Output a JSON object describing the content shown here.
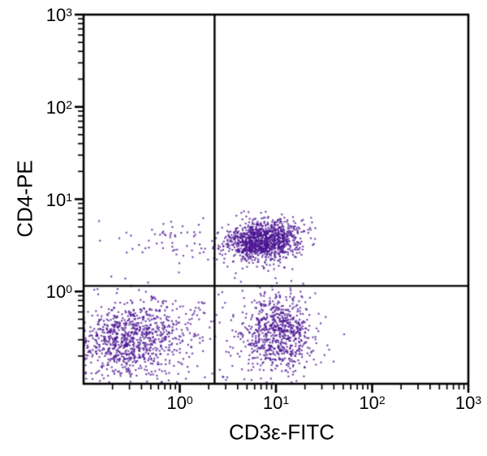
{
  "chart_data": {
    "type": "scatter",
    "title": "",
    "xlabel": "CD3ε-FITC",
    "ylabel": "CD4-PE",
    "x_scale": "log",
    "y_scale": "log",
    "xlim": [
      0.1,
      1000
    ],
    "ylim": [
      0.1,
      1000
    ],
    "x_ticks": [
      {
        "base": "10",
        "exp": "0",
        "value": 1
      },
      {
        "base": "10",
        "exp": "1",
        "value": 10
      },
      {
        "base": "10",
        "exp": "2",
        "value": 100
      },
      {
        "base": "10",
        "exp": "3",
        "value": 1000
      }
    ],
    "y_ticks": [
      {
        "base": "10",
        "exp": "0",
        "value": 1
      },
      {
        "base": "10",
        "exp": "1",
        "value": 10
      },
      {
        "base": "10",
        "exp": "2",
        "value": 100
      },
      {
        "base": "10",
        "exp": "3",
        "value": 1000
      }
    ],
    "grid": false,
    "legend": false,
    "quadrant_gates": {
      "x": 2.3,
      "y": 1.15
    },
    "colors": {
      "points": "#4a1391",
      "axis": "#000000",
      "background": "#ffffff"
    },
    "populations": [
      {
        "name": "CD3-CD4- double negative (lower left)",
        "count": 900,
        "log10_center": [
          -0.52,
          -0.52
        ],
        "log10_sigma": [
          0.28,
          0.2
        ],
        "rho": 0.1
      },
      {
        "name": "CD3+CD4+ helper T cells (upper right of gate)",
        "count": 1150,
        "log10_center": [
          0.86,
          0.55
        ],
        "log10_sigma": [
          0.2,
          0.11
        ],
        "rho": 0.2
      },
      {
        "name": "CD3+CD4- cells (lower right)",
        "count": 720,
        "log10_center": [
          1.03,
          -0.45
        ],
        "log10_sigma": [
          0.18,
          0.22
        ],
        "rho": 0.05
      },
      {
        "name": "sparse bridge left of CD3+CD4+ cluster",
        "count": 55,
        "log10_center": [
          -0.02,
          0.55
        ],
        "log10_sigma": [
          0.3,
          0.09
        ],
        "rho": 0
      },
      {
        "name": "diffuse background below gate",
        "count": 130,
        "log10_center": [
          0.2,
          -0.4
        ],
        "log10_sigma": [
          0.5,
          0.3
        ],
        "rho": 0
      }
    ]
  }
}
